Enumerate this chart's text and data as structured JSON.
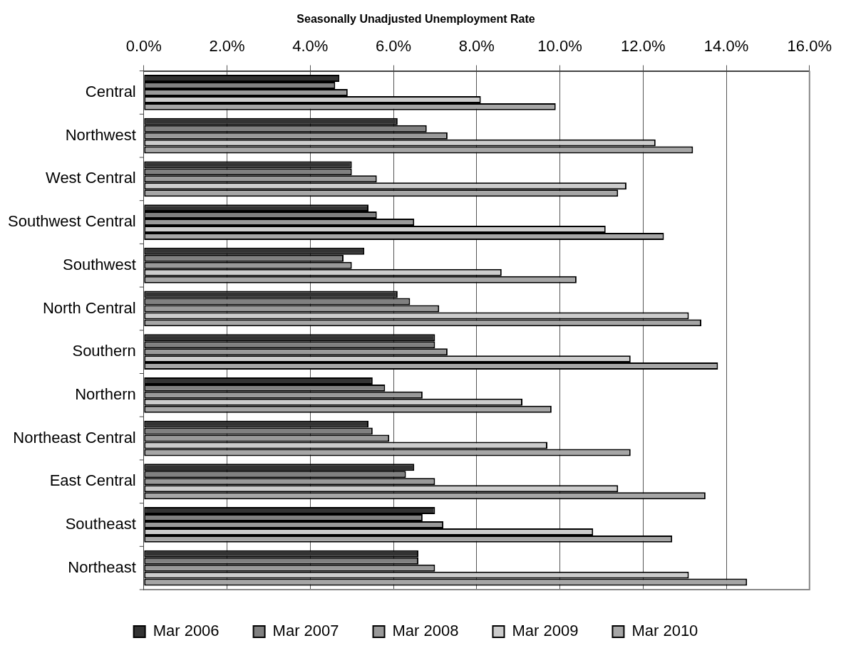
{
  "chart_data": {
    "type": "bar",
    "orientation": "horizontal",
    "title": "Seasonally Unadjusted Unemployment Rate",
    "categories": [
      "Central",
      "Northwest",
      "West Central",
      "Southwest Central",
      "Southwest",
      "North Central",
      "Southern",
      "Northern",
      "Northeast Central",
      "East Central",
      "Southeast",
      "Northeast"
    ],
    "series": [
      {
        "name": "Mar 2006",
        "color": "#333333",
        "values": [
          4.7,
          6.1,
          5.0,
          5.4,
          5.3,
          6.1,
          7.0,
          5.5,
          5.4,
          6.5,
          7.0,
          6.6
        ]
      },
      {
        "name": "Mar 2007",
        "color": "#808080",
        "values": [
          4.6,
          6.8,
          5.0,
          5.6,
          4.8,
          6.4,
          7.0,
          5.8,
          5.5,
          6.3,
          6.7,
          6.6
        ]
      },
      {
        "name": "Mar 2008",
        "color": "#999999",
        "values": [
          4.9,
          7.3,
          5.6,
          6.5,
          5.0,
          7.1,
          7.3,
          6.7,
          5.9,
          7.0,
          7.2,
          7.0
        ]
      },
      {
        "name": "Mar 2009",
        "color": "#cccccc",
        "values": [
          8.1,
          12.3,
          11.6,
          11.1,
          8.6,
          13.1,
          11.7,
          9.1,
          9.7,
          11.4,
          10.8,
          13.1
        ]
      },
      {
        "name": "Mar 2010",
        "color": "#a6a6a6",
        "values": [
          9.9,
          13.2,
          11.4,
          12.5,
          10.4,
          13.4,
          13.8,
          9.8,
          11.7,
          13.5,
          12.7,
          14.5
        ]
      }
    ],
    "xlim": [
      0,
      16
    ],
    "xticks": [
      {
        "value": 0,
        "label": "0.0%"
      },
      {
        "value": 2,
        "label": "2.0%"
      },
      {
        "value": 4,
        "label": "4.0%"
      },
      {
        "value": 6,
        "label": "6.0%"
      },
      {
        "value": 8,
        "label": "8.0%"
      },
      {
        "value": 10,
        "label": "10.0%"
      },
      {
        "value": 12,
        "label": "12.0%"
      },
      {
        "value": 14,
        "label": "14.0%"
      },
      {
        "value": 16,
        "label": "16.0%"
      }
    ],
    "grid": "x",
    "legend": "bottom"
  }
}
